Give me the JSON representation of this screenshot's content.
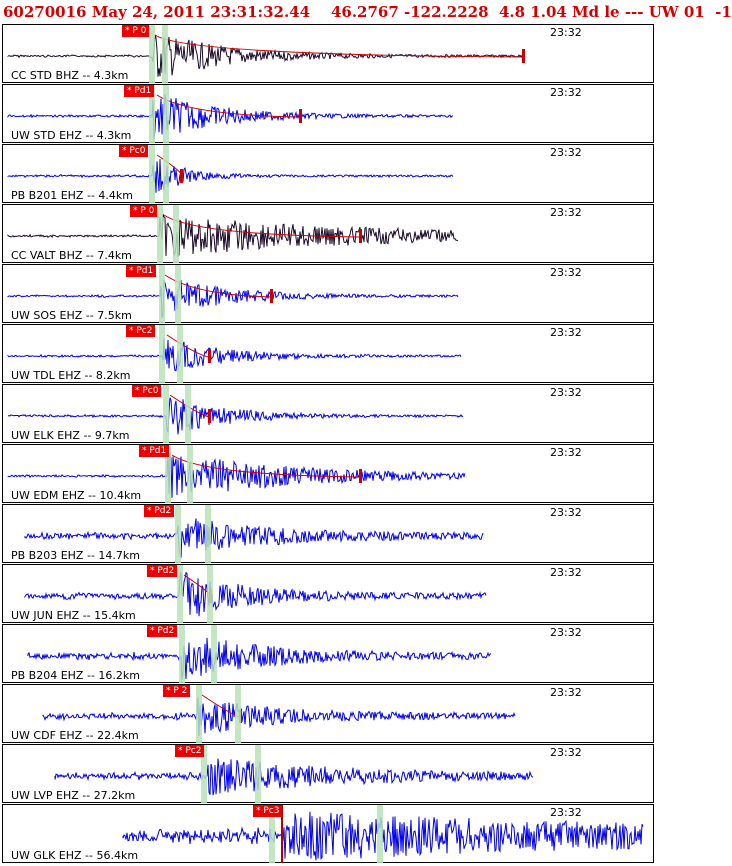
{
  "header": {
    "text": "60270016 May 24, 2011 23:31:32.44    46.2767 -122.2228  4.8 1.04 Md le --- UW 01  -1"
  },
  "colors": {
    "primary_trace": "#0000ee",
    "dark_trace": "#1a0a2a",
    "pick": "#ee0000",
    "window": "#b8e2b8",
    "coda": "#cc0000"
  },
  "traces": [
    {
      "station": "CC STD BHZ -- 4.3km",
      "time": "23:32",
      "pick": "* P 0",
      "color_key": "dark"
    },
    {
      "station": "UW STD EHZ -- 4.3km",
      "time": "23:32",
      "pick": "* Pd1",
      "color_key": "blue"
    },
    {
      "station": "PB B201 EHZ -- 4.4km",
      "time": "23:32",
      "pick": "* Pc0",
      "color_key": "blue"
    },
    {
      "station": "CC VALT BHZ -- 7.4km",
      "time": "23:32",
      "pick": "* P 0",
      "color_key": "dark"
    },
    {
      "station": "UW SOS EHZ -- 7.5km",
      "time": "23:32",
      "pick": "* Pd1",
      "color_key": "blue"
    },
    {
      "station": "UW TDL EHZ -- 8.2km",
      "time": "23:32",
      "pick": "* Pc2",
      "color_key": "blue"
    },
    {
      "station": "UW ELK EHZ -- 9.7km",
      "time": "23:32",
      "pick": "* Pc0",
      "color_key": "blue"
    },
    {
      "station": "UW EDM EHZ -- 10.4km",
      "time": "23:32",
      "pick": "* Pd1",
      "color_key": "blue"
    },
    {
      "station": "PB B203 EHZ -- 14.7km",
      "time": "23:32",
      "pick": "* Pd2",
      "color_key": "blue"
    },
    {
      "station": "UW JUN EHZ -- 15.4km",
      "time": "23:32",
      "pick": "* Pd2",
      "color_key": "blue"
    },
    {
      "station": "PB B204 EHZ -- 16.2km",
      "time": "23:32",
      "pick": "* Pd2",
      "color_key": "blue"
    },
    {
      "station": "UW CDF EHZ -- 22.4km",
      "time": "23:32",
      "pick": "* P 2",
      "color_key": "blue"
    },
    {
      "station": "UW LVP EHZ -- 27.2km",
      "time": "23:32",
      "pick": "* Pc2",
      "color_key": "blue"
    },
    {
      "station": "UW GLK EHZ -- 56.4km",
      "time": "23:32",
      "pick": "* Pc3",
      "color_key": "blue"
    }
  ]
}
